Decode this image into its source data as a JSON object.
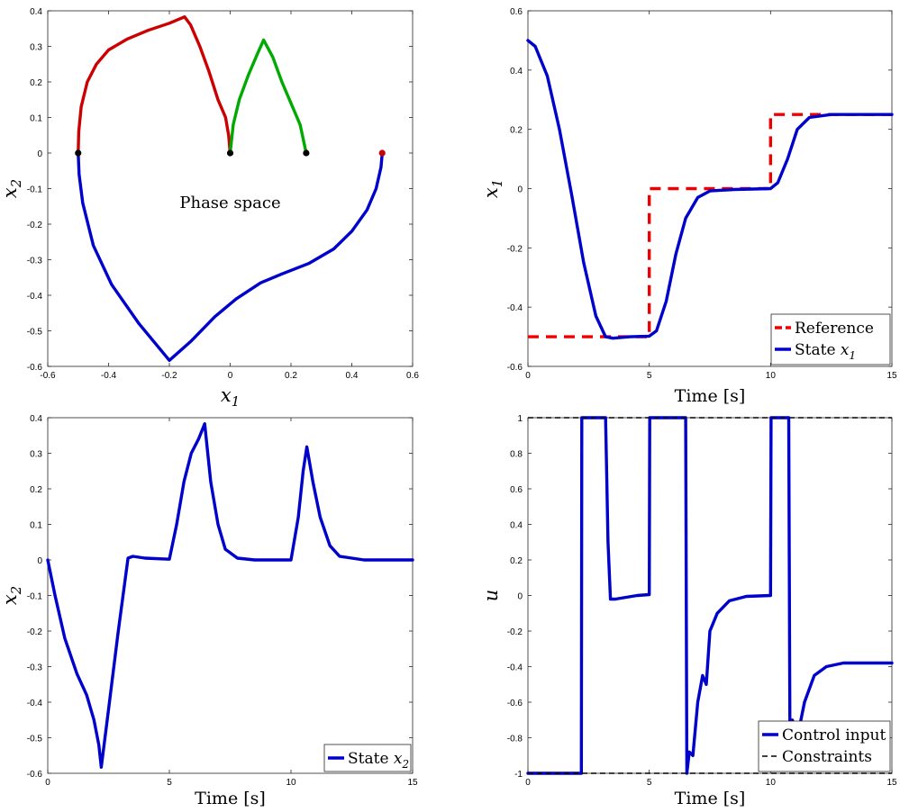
{
  "chart_data": [
    {
      "type": "line",
      "panel": "top-left",
      "xlabel": "x_1",
      "ylabel": "x_2",
      "xlim": [
        -0.6,
        0.6
      ],
      "ylim": [
        -0.6,
        0.4
      ],
      "xticks": [
        "-0.6",
        "-0.4",
        "-0.2",
        "0",
        "0.2",
        "0.4",
        "0.6"
      ],
      "yticks": [
        "-0.6",
        "-0.5",
        "-0.4",
        "-0.3",
        "-0.2",
        "-0.1",
        "0",
        "0.1",
        "0.2",
        "0.3",
        "0.4"
      ],
      "annotation": "Phase space",
      "series": [
        {
          "color": "#0000cc",
          "points": [
            [
              0.5,
              0
            ],
            [
              0.496,
              -0.04
            ],
            [
              0.48,
              -0.1
            ],
            [
              0.45,
              -0.16
            ],
            [
              0.4,
              -0.22
            ],
            [
              0.34,
              -0.27
            ],
            [
              0.26,
              -0.31
            ],
            [
              0.17,
              -0.34
            ],
            [
              0.1,
              -0.365
            ],
            [
              0.02,
              -0.41
            ],
            [
              -0.05,
              -0.46
            ],
            [
              -0.13,
              -0.53
            ],
            [
              -0.2,
              -0.583
            ],
            [
              -0.3,
              -0.48
            ],
            [
              -0.39,
              -0.37
            ],
            [
              -0.45,
              -0.26
            ],
            [
              -0.485,
              -0.14
            ],
            [
              -0.497,
              -0.06
            ],
            [
              -0.5,
              0
            ]
          ]
        },
        {
          "color": "#cc0000",
          "points": [
            [
              -0.5,
              0
            ],
            [
              -0.498,
              0.06
            ],
            [
              -0.49,
              0.13
            ],
            [
              -0.47,
              0.2
            ],
            [
              -0.44,
              0.25
            ],
            [
              -0.4,
              0.29
            ],
            [
              -0.34,
              0.32
            ],
            [
              -0.27,
              0.345
            ],
            [
              -0.2,
              0.365
            ],
            [
              -0.15,
              0.383
            ],
            [
              -0.13,
              0.36
            ],
            [
              -0.1,
              0.3
            ],
            [
              -0.07,
              0.23
            ],
            [
              -0.04,
              0.15
            ],
            [
              -0.015,
              0.1
            ],
            [
              -0.005,
              0.05
            ],
            [
              0,
              0
            ]
          ]
        },
        {
          "color": "#00aa00",
          "points": [
            [
              0,
              0
            ],
            [
              0.01,
              0.08
            ],
            [
              0.03,
              0.15
            ],
            [
              0.06,
              0.22
            ],
            [
              0.09,
              0.28
            ],
            [
              0.11,
              0.318
            ],
            [
              0.14,
              0.27
            ],
            [
              0.17,
              0.2
            ],
            [
              0.2,
              0.14
            ],
            [
              0.23,
              0.08
            ],
            [
              0.25,
              0
            ]
          ]
        }
      ],
      "markers": [
        {
          "x": -0.5,
          "y": 0,
          "color": "#000000"
        },
        {
          "x": 0,
          "y": 0,
          "color": "#000000"
        },
        {
          "x": 0.25,
          "y": 0,
          "color": "#000000"
        },
        {
          "x": 0.5,
          "y": 0,
          "color": "#cc0000"
        }
      ]
    },
    {
      "type": "line",
      "panel": "top-right",
      "xlabel": "Time [s]",
      "ylabel": "x_1",
      "xlim": [
        0,
        15
      ],
      "ylim": [
        -0.6,
        0.6
      ],
      "xticks": [
        "0",
        "5",
        "10",
        "15"
      ],
      "yticks": [
        "-0.6",
        "-0.4",
        "-0.2",
        "0",
        "0.2",
        "0.4",
        "0.6"
      ],
      "legend": "bottom-right",
      "series": [
        {
          "name": "Reference",
          "color": "#ee0000",
          "dashed": true,
          "points": [
            [
              0,
              -0.5
            ],
            [
              5,
              -0.5
            ],
            [
              5,
              0
            ],
            [
              10,
              0
            ],
            [
              10,
              0.25
            ],
            [
              15,
              0.25
            ]
          ]
        },
        {
          "name": "State x_1",
          "color": "#0000cc",
          "points": [
            [
              0,
              0.5
            ],
            [
              0.3,
              0.48
            ],
            [
              0.8,
              0.38
            ],
            [
              1.3,
              0.2
            ],
            [
              1.8,
              -0.02
            ],
            [
              2.3,
              -0.25
            ],
            [
              2.8,
              -0.43
            ],
            [
              3.2,
              -0.5
            ],
            [
              3.5,
              -0.505
            ],
            [
              4.2,
              -0.5
            ],
            [
              5,
              -0.498
            ],
            [
              5.3,
              -0.48
            ],
            [
              5.7,
              -0.38
            ],
            [
              6.1,
              -0.22
            ],
            [
              6.5,
              -0.1
            ],
            [
              7,
              -0.03
            ],
            [
              7.5,
              -0.008
            ],
            [
              8.5,
              -0.003
            ],
            [
              10,
              0
            ],
            [
              10.3,
              0.02
            ],
            [
              10.7,
              0.1
            ],
            [
              11.1,
              0.2
            ],
            [
              11.6,
              0.24
            ],
            [
              12.5,
              0.25
            ],
            [
              15,
              0.25
            ]
          ]
        }
      ]
    },
    {
      "type": "line",
      "panel": "bottom-left",
      "xlabel": "Time [s]",
      "ylabel": "x_2",
      "xlim": [
        0,
        15
      ],
      "ylim": [
        -0.6,
        0.4
      ],
      "xticks": [
        "0",
        "5",
        "10",
        "15"
      ],
      "yticks": [
        "-0.6",
        "-0.5",
        "-0.4",
        "-0.3",
        "-0.2",
        "-0.1",
        "0",
        "0.1",
        "0.2",
        "0.3",
        "0.4"
      ],
      "legend": "bottom-right",
      "series": [
        {
          "name": "State x_2",
          "color": "#0000cc",
          "points": [
            [
              0,
              0
            ],
            [
              0.3,
              -0.1
            ],
            [
              0.7,
              -0.22
            ],
            [
              1.2,
              -0.32
            ],
            [
              1.6,
              -0.38
            ],
            [
              1.9,
              -0.45
            ],
            [
              2.1,
              -0.52
            ],
            [
              2.2,
              -0.583
            ],
            [
              2.5,
              -0.42
            ],
            [
              2.9,
              -0.2
            ],
            [
              3.3,
              0.005
            ],
            [
              3.5,
              0.01
            ],
            [
              4,
              0.005
            ],
            [
              5,
              0.002
            ],
            [
              5.3,
              0.1
            ],
            [
              5.6,
              0.22
            ],
            [
              5.9,
              0.3
            ],
            [
              6.2,
              0.34
            ],
            [
              6.45,
              0.383
            ],
            [
              6.7,
              0.22
            ],
            [
              7,
              0.1
            ],
            [
              7.3,
              0.03
            ],
            [
              7.8,
              0.005
            ],
            [
              8.5,
              0
            ],
            [
              10,
              0
            ],
            [
              10.3,
              0.12
            ],
            [
              10.5,
              0.25
            ],
            [
              10.65,
              0.318
            ],
            [
              10.9,
              0.22
            ],
            [
              11.2,
              0.12
            ],
            [
              11.6,
              0.04
            ],
            [
              12,
              0.01
            ],
            [
              13,
              0
            ],
            [
              15,
              0
            ]
          ]
        }
      ]
    },
    {
      "type": "line",
      "panel": "bottom-right",
      "xlabel": "Time [s]",
      "ylabel": "u",
      "xlim": [
        0,
        15
      ],
      "ylim": [
        -1,
        1
      ],
      "xticks": [
        "0",
        "5",
        "10",
        "15"
      ],
      "yticks": [
        "-1",
        "-0.8",
        "-0.6",
        "-0.4",
        "-0.2",
        "0",
        "0.2",
        "0.4",
        "0.6",
        "0.8",
        "1"
      ],
      "legend": "bottom-right",
      "series": [
        {
          "name": "Control input",
          "color": "#0000cc",
          "points": [
            [
              0,
              -1
            ],
            [
              2.2,
              -1
            ],
            [
              2.22,
              1
            ],
            [
              3.2,
              1
            ],
            [
              3.3,
              0.3
            ],
            [
              3.4,
              -0.02
            ],
            [
              3.6,
              -0.02
            ],
            [
              4.5,
              0
            ],
            [
              5,
              0.005
            ],
            [
              5.02,
              1
            ],
            [
              6.5,
              1
            ],
            [
              6.55,
              -1
            ],
            [
              6.65,
              -0.88
            ],
            [
              6.8,
              -0.9
            ],
            [
              7,
              -0.6
            ],
            [
              7.2,
              -0.45
            ],
            [
              7.35,
              -0.5
            ],
            [
              7.5,
              -0.2
            ],
            [
              7.8,
              -0.1
            ],
            [
              8.3,
              -0.03
            ],
            [
              9,
              -0.005
            ],
            [
              10,
              0
            ],
            [
              10.02,
              1
            ],
            [
              10.75,
              1
            ],
            [
              10.8,
              -0.9
            ],
            [
              10.9,
              -0.7
            ],
            [
              11.1,
              -0.8
            ],
            [
              11.4,
              -0.6
            ],
            [
              11.8,
              -0.45
            ],
            [
              12.3,
              -0.4
            ],
            [
              13,
              -0.38
            ],
            [
              15,
              -0.38
            ]
          ]
        },
        {
          "name": "Constraints",
          "color": "#000000",
          "dashed": true,
          "points": [
            [
              0,
              1
            ],
            [
              15,
              1
            ]
          ]
        },
        {
          "name": "",
          "color": "#000000",
          "dashed": true,
          "points": [
            [
              0,
              -1
            ],
            [
              15,
              -1
            ]
          ]
        }
      ]
    }
  ]
}
